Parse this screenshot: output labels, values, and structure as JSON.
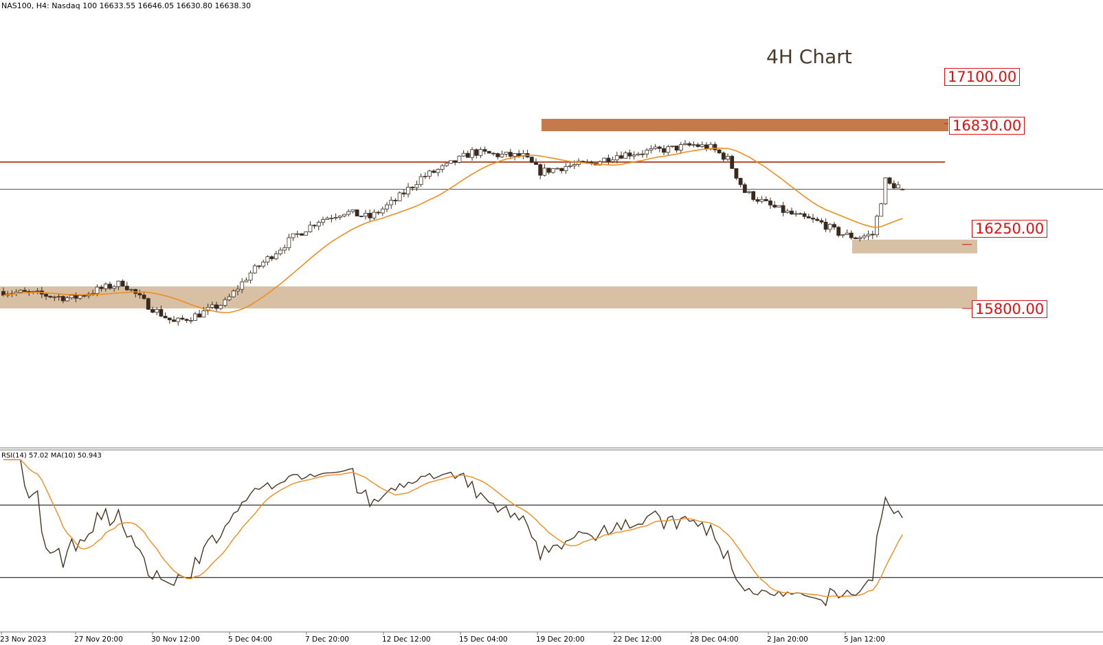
{
  "header": {
    "symbol": "NAS100, H4:  Nasdaq 100  16633.55 16646.05 16630.80 16638.30"
  },
  "annotation": {
    "title": "4H Chart"
  },
  "levels": [
    {
      "label": "17100.00"
    },
    {
      "label": "16830.00"
    },
    {
      "label": "16250.00"
    },
    {
      "label": "15800.00"
    }
  ],
  "rsi": {
    "label": "RSI(14) 57.02 MA(10) 50.943"
  },
  "colors": {
    "candle_up": "#ffffff",
    "candle_down": "#3a2a1e",
    "ma": "#f08c1e",
    "rsi_line": "#4a3220",
    "resistance_zone": "#c47a4a",
    "support_zone": "#d8c0a4",
    "level_line": "#b04a2a",
    "label_red": "#e01010"
  },
  "chart_data": [
    {
      "type": "candlestick",
      "symbol": "NAS100",
      "timeframe": "H4",
      "x_ticks": [
        "23 Nov 2023",
        "27 Nov 20:00",
        "30 Nov 12:00",
        "5 Dec 04:00",
        "7 Dec 20:00",
        "12 Dec 12:00",
        "15 Dec 04:00",
        "19 Dec 20:00",
        "22 Dec 12:00",
        "28 Dec 04:00",
        "2 Jan 20:00",
        "5 Jan 12:00"
      ],
      "close_path": [
        [
          0,
          15920
        ],
        [
          8,
          15900
        ],
        [
          16,
          15870
        ],
        [
          22,
          15930
        ],
        [
          28,
          15980
        ],
        [
          34,
          15820
        ],
        [
          40,
          15700
        ],
        [
          46,
          15760
        ],
        [
          52,
          15840
        ],
        [
          58,
          16050
        ],
        [
          64,
          16200
        ],
        [
          68,
          16300
        ],
        [
          74,
          16420
        ],
        [
          80,
          16480
        ],
        [
          86,
          16440
        ],
        [
          92,
          16560
        ],
        [
          98,
          16720
        ],
        [
          104,
          16800
        ],
        [
          110,
          16900
        ],
        [
          116,
          16880
        ],
        [
          122,
          16870
        ],
        [
          126,
          16760
        ],
        [
          132,
          16800
        ],
        [
          138,
          16820
        ],
        [
          144,
          16880
        ],
        [
          150,
          16900
        ],
        [
          156,
          16920
        ],
        [
          162,
          16950
        ],
        [
          166,
          16930
        ],
        [
          170,
          16850
        ],
        [
          174,
          16620
        ],
        [
          180,
          16520
        ],
        [
          186,
          16450
        ],
        [
          192,
          16400
        ],
        [
          196,
          16330
        ],
        [
          200,
          16300
        ],
        [
          204,
          16320
        ],
        [
          206,
          16560
        ],
        [
          207,
          16700
        ],
        [
          208,
          16670
        ],
        [
          211,
          16660
        ]
      ],
      "ma_period": 20,
      "last_price": 16638.3,
      "last_ohlc": {
        "open": 16633.55,
        "high": 16646.05,
        "low": 16630.8,
        "close": 16638.3
      },
      "levels": [
        17100,
        16830,
        16250,
        15800
      ],
      "ylim": [
        15300,
        17350
      ]
    },
    {
      "type": "line",
      "name": "RSI(14)",
      "ma_name": "MA(10)",
      "rsi_last": 57.02,
      "ma_last": 50.943,
      "levels": [
        70,
        30
      ],
      "ylim": [
        0,
        100
      ]
    }
  ]
}
